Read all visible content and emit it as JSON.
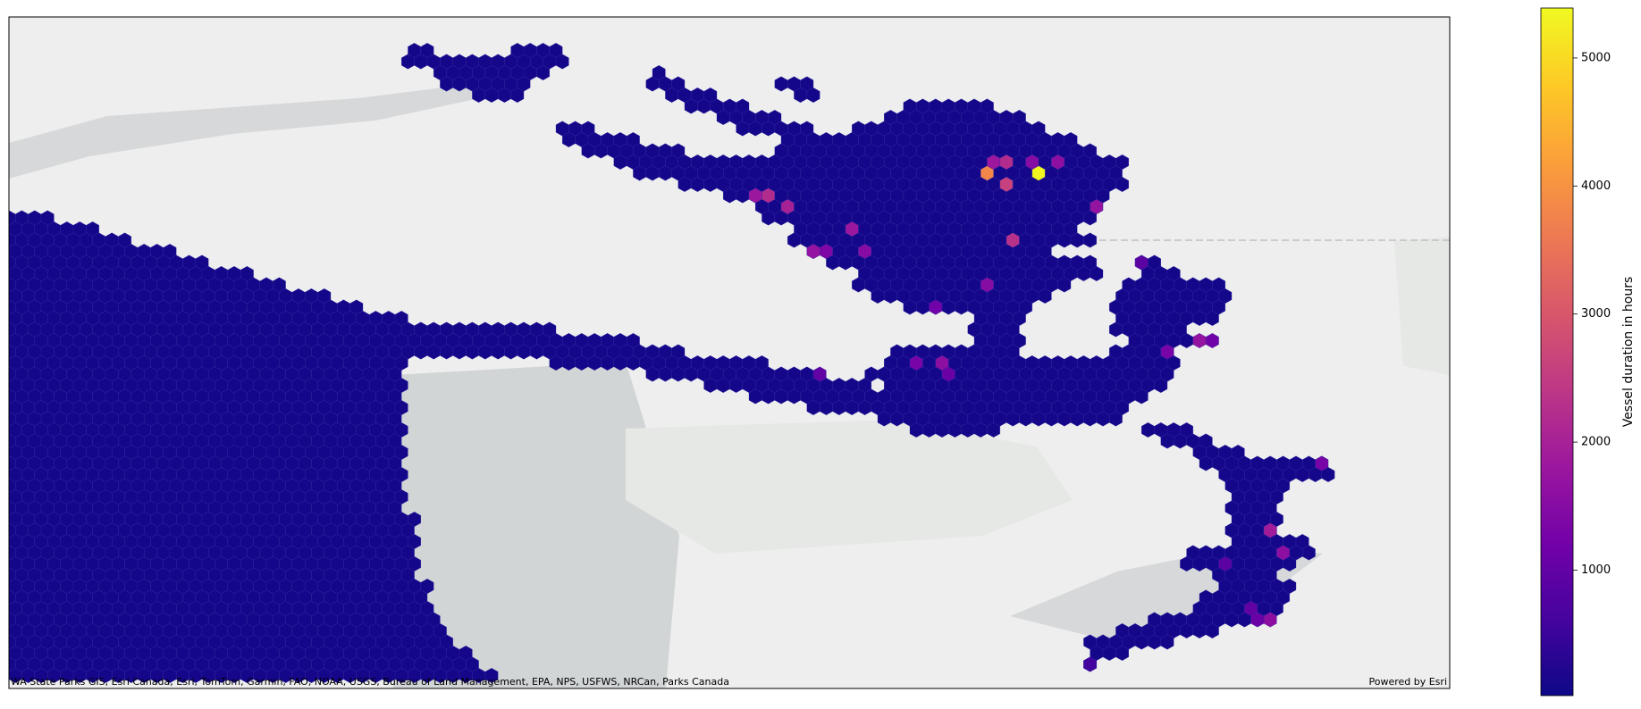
{
  "chart_data": {
    "type": "hexbin",
    "colormap": "plasma",
    "colorbar_label": "Vessel duration in hours",
    "clim": [
      20,
      5390
    ],
    "cticks": [
      1000,
      2000,
      3000,
      4000,
      5000
    ],
    "attribution": "WA State Parks GIS, Esri Canada, Esri, TomTom, Garmin, FAO, NOAA, USGS, Bureau of Land Management, EPA, NPS, USFWS, NRCan, Parks Canada",
    "credit": "Powered by Esri",
    "spans": [
      [
        3,
        31,
        32,
        100
      ],
      [
        3,
        39,
        42,
        100
      ],
      [
        4,
        31,
        43,
        100
      ],
      [
        5,
        33,
        41,
        100
      ],
      [
        5,
        50,
        50,
        100
      ],
      [
        6,
        34,
        40,
        100
      ],
      [
        6,
        50,
        52,
        100
      ],
      [
        6,
        60,
        62,
        100
      ],
      [
        7,
        36,
        39,
        100
      ],
      [
        7,
        51,
        54,
        100
      ],
      [
        7,
        61,
        62,
        100
      ],
      [
        8,
        53,
        57,
        100
      ],
      [
        8,
        70,
        76,
        100
      ],
      [
        9,
        55,
        59,
        100
      ],
      [
        9,
        68,
        78,
        100
      ],
      [
        10,
        43,
        45,
        100
      ],
      [
        10,
        57,
        62,
        100
      ],
      [
        10,
        66,
        80,
        100
      ],
      [
        11,
        43,
        48,
        100
      ],
      [
        11,
        60,
        82,
        100
      ],
      [
        12,
        45,
        52,
        100
      ],
      [
        12,
        60,
        84,
        100
      ],
      [
        13,
        47,
        86,
        100
      ],
      [
        14,
        49,
        86,
        100
      ],
      [
        15,
        52,
        86,
        100
      ],
      [
        16,
        56,
        85,
        100
      ],
      [
        17,
        58,
        84,
        100
      ],
      [
        18,
        0,
        3,
        100
      ],
      [
        18,
        59,
        84,
        100
      ],
      [
        19,
        0,
        6,
        100
      ],
      [
        19,
        61,
        82,
        100
      ],
      [
        20,
        0,
        9,
        100
      ],
      [
        20,
        61,
        84,
        100
      ],
      [
        21,
        0,
        12,
        100
      ],
      [
        21,
        62,
        80,
        100
      ],
      [
        22,
        0,
        15,
        100
      ],
      [
        22,
        64,
        84,
        100
      ],
      [
        22,
        88,
        89,
        100
      ],
      [
        23,
        0,
        18,
        100
      ],
      [
        23,
        66,
        84,
        100
      ],
      [
        23,
        88,
        90,
        100
      ],
      [
        24,
        0,
        21,
        100
      ],
      [
        24,
        66,
        82,
        100
      ],
      [
        24,
        87,
        94,
        100
      ],
      [
        25,
        0,
        24,
        100
      ],
      [
        25,
        67,
        80,
        100
      ],
      [
        25,
        86,
        94,
        100
      ],
      [
        26,
        0,
        27,
        100
      ],
      [
        26,
        70,
        79,
        100
      ],
      [
        26,
        86,
        94,
        100
      ],
      [
        27,
        0,
        30,
        100
      ],
      [
        27,
        75,
        78,
        100
      ],
      [
        27,
        86,
        93,
        100
      ],
      [
        28,
        0,
        42,
        100
      ],
      [
        28,
        75,
        78,
        100
      ],
      [
        28,
        86,
        91,
        100
      ],
      [
        29,
        0,
        48,
        100
      ],
      [
        29,
        75,
        78,
        100
      ],
      [
        29,
        87,
        91,
        100
      ],
      [
        30,
        0,
        52,
        100
      ],
      [
        30,
        69,
        78,
        100
      ],
      [
        30,
        86,
        90,
        100
      ],
      [
        31,
        0,
        30,
        100
      ],
      [
        31,
        42,
        58,
        100
      ],
      [
        31,
        68,
        90,
        100
      ],
      [
        32,
        0,
        30,
        100
      ],
      [
        32,
        50,
        62,
        100
      ],
      [
        32,
        67,
        90,
        100
      ],
      [
        33,
        0,
        30,
        100
      ],
      [
        33,
        54,
        66,
        100
      ],
      [
        33,
        68,
        89,
        100
      ],
      [
        34,
        0,
        30,
        100
      ],
      [
        34,
        58,
        88,
        100
      ],
      [
        35,
        0,
        30,
        100
      ],
      [
        35,
        62,
        86,
        100
      ],
      [
        36,
        0,
        30,
        100
      ],
      [
        36,
        68,
        86,
        100
      ],
      [
        37,
        0,
        30,
        100
      ],
      [
        37,
        70,
        76,
        100
      ],
      [
        37,
        88,
        91,
        100
      ],
      [
        38,
        0,
        30,
        100
      ],
      [
        38,
        90,
        93,
        100
      ],
      [
        39,
        0,
        30,
        100
      ],
      [
        39,
        92,
        95,
        100
      ],
      [
        40,
        0,
        30,
        100
      ],
      [
        40,
        93,
        102,
        100
      ],
      [
        41,
        0,
        30,
        100
      ],
      [
        41,
        94,
        102,
        100
      ],
      [
        42,
        0,
        30,
        100
      ],
      [
        42,
        95,
        99,
        100
      ],
      [
        43,
        0,
        30,
        100
      ],
      [
        43,
        95,
        98,
        100
      ],
      [
        44,
        0,
        30,
        100
      ],
      [
        44,
        95,
        98,
        100
      ],
      [
        45,
        0,
        31,
        100
      ],
      [
        45,
        95,
        98,
        100
      ],
      [
        46,
        0,
        31,
        100
      ],
      [
        46,
        95,
        98,
        100
      ],
      [
        47,
        0,
        31,
        100
      ],
      [
        47,
        95,
        100,
        100
      ],
      [
        48,
        0,
        31,
        100
      ],
      [
        48,
        92,
        101,
        100
      ],
      [
        49,
        0,
        31,
        100
      ],
      [
        49,
        91,
        99,
        100
      ],
      [
        50,
        0,
        31,
        100
      ],
      [
        50,
        94,
        98,
        100
      ],
      [
        51,
        0,
        32,
        100
      ],
      [
        51,
        94,
        99,
        100
      ],
      [
        52,
        0,
        32,
        100
      ],
      [
        52,
        93,
        99,
        100
      ],
      [
        53,
        0,
        32,
        100
      ],
      [
        53,
        92,
        98,
        100
      ],
      [
        54,
        0,
        33,
        100
      ],
      [
        54,
        89,
        96,
        100
      ],
      [
        55,
        0,
        33,
        100
      ],
      [
        55,
        86,
        93,
        100
      ],
      [
        56,
        0,
        34,
        100
      ],
      [
        56,
        84,
        90,
        100
      ],
      [
        57,
        0,
        35,
        100
      ],
      [
        57,
        84,
        86,
        100
      ],
      [
        58,
        0,
        36,
        100
      ],
      [
        58,
        84,
        84,
        100
      ],
      [
        59,
        0,
        37,
        100
      ]
    ],
    "cells": [
      [
        14,
        80,
        5350
      ],
      [
        14,
        76,
        3800
      ],
      [
        13,
        77,
        2200
      ],
      [
        13,
        76,
        1800
      ],
      [
        13,
        79,
        1500
      ],
      [
        13,
        81,
        1600
      ],
      [
        15,
        77,
        2600
      ],
      [
        17,
        84,
        1700
      ],
      [
        20,
        78,
        2300
      ],
      [
        16,
        58,
        1800
      ],
      [
        16,
        59,
        2200
      ],
      [
        17,
        60,
        2000
      ],
      [
        19,
        65,
        1800
      ],
      [
        21,
        62,
        1700
      ],
      [
        21,
        63,
        1400
      ],
      [
        21,
        66,
        1500
      ],
      [
        24,
        76,
        1500
      ],
      [
        26,
        72,
        1200
      ],
      [
        31,
        70,
        1300
      ],
      [
        31,
        72,
        1600
      ],
      [
        32,
        73,
        1100
      ],
      [
        32,
        63,
        1000
      ],
      [
        22,
        88,
        900
      ],
      [
        29,
        92,
        1700
      ],
      [
        30,
        90,
        1300
      ],
      [
        29,
        93,
        1200
      ],
      [
        40,
        102,
        1300
      ],
      [
        46,
        98,
        1900
      ],
      [
        48,
        99,
        1600
      ],
      [
        49,
        94,
        900
      ],
      [
        53,
        96,
        1000
      ],
      [
        54,
        98,
        1600
      ],
      [
        54,
        97,
        1100
      ],
      [
        58,
        84,
        600
      ]
    ]
  }
}
